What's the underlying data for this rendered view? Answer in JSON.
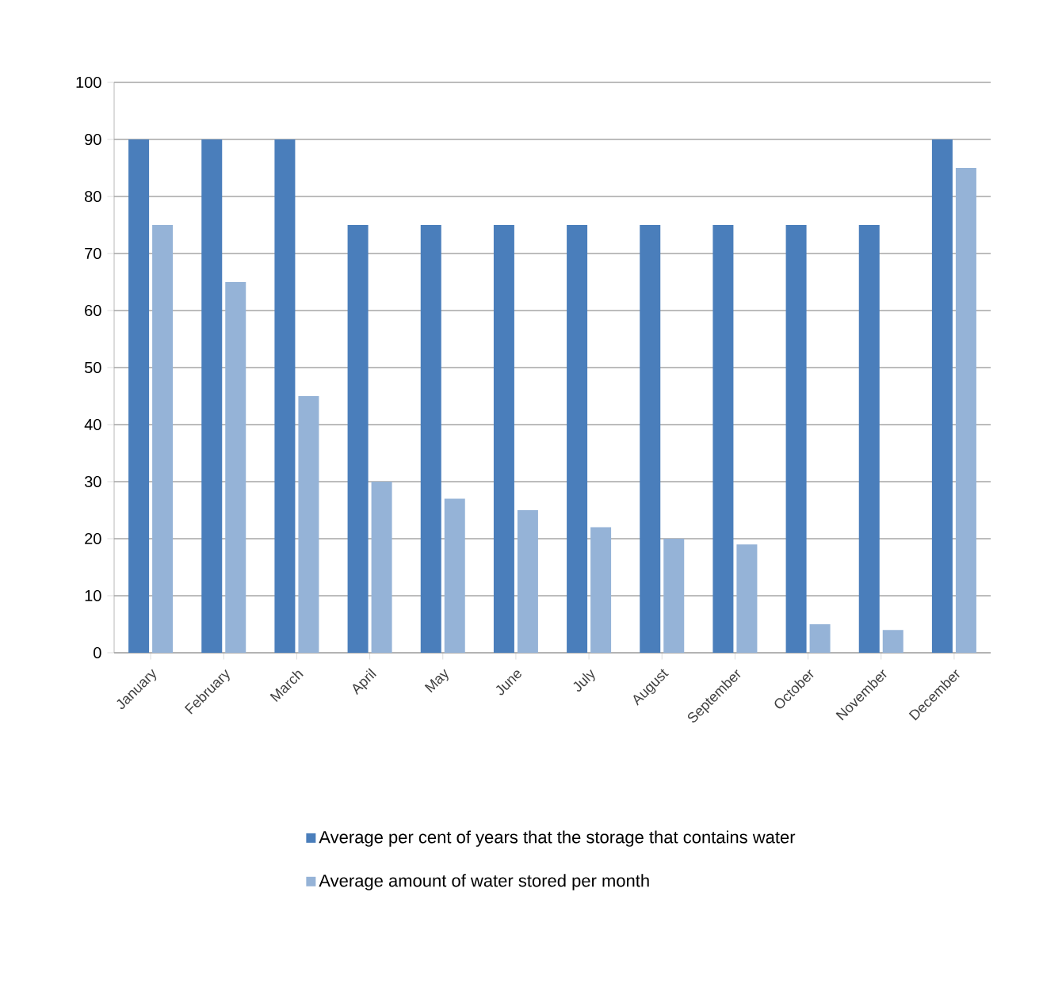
{
  "chart_data": {
    "type": "bar",
    "categories": [
      "January",
      "February",
      "March",
      "April",
      "May",
      "June",
      "July",
      "August",
      "September",
      "October",
      "November",
      "December"
    ],
    "series": [
      {
        "name": "Average per cent of years that the storage that contains water",
        "color": "#4a7ebb",
        "values": [
          90,
          90,
          90,
          75,
          75,
          75,
          75,
          75,
          75,
          75,
          75,
          90
        ]
      },
      {
        "name": "Average amount of water stored per month",
        "color": "#95b3d7",
        "values": [
          75,
          65,
          45,
          30,
          27,
          25,
          22,
          20,
          19,
          5,
          4,
          85
        ]
      }
    ],
    "ylim": [
      0,
      100
    ],
    "yticks": [
      0,
      10,
      20,
      30,
      40,
      50,
      60,
      70,
      80,
      90,
      100
    ],
    "grid": "y",
    "legend": "bottom"
  }
}
